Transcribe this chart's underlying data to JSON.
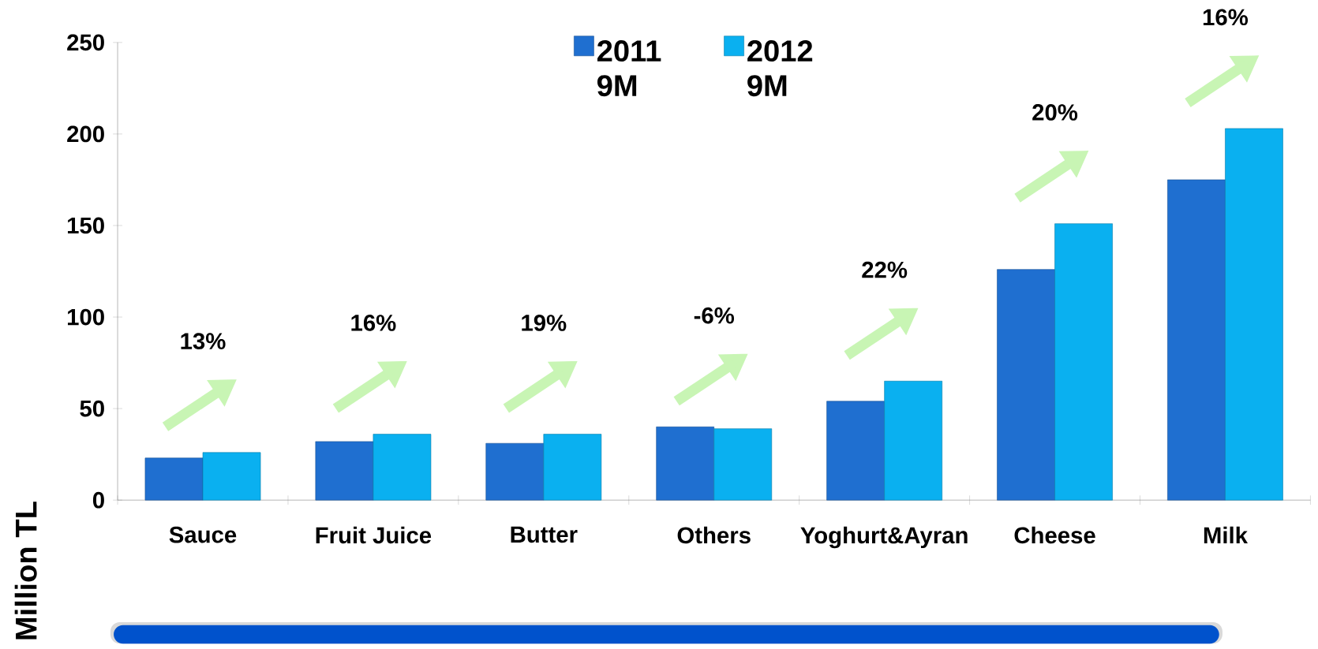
{
  "chart_data": {
    "type": "bar",
    "ylabel": "Million TL",
    "categories": [
      "Sauce",
      "Fruit Juice",
      "Butter",
      "Others",
      "Yoghurt&Ayran",
      "Cheese",
      "Milk"
    ],
    "series": [
      {
        "name": "2011 9M",
        "color": "#1f6fd0",
        "values": [
          23,
          32,
          31,
          40,
          54,
          126,
          175
        ]
      },
      {
        "name": "2012 9M",
        "color": "#0ab0f0",
        "values": [
          26,
          36,
          36,
          39,
          65,
          151,
          203
        ]
      }
    ],
    "ylim": [
      0,
      250
    ],
    "yticks": [
      0,
      50,
      100,
      150,
      200,
      250
    ],
    "annotations": [
      "13%",
      "16%",
      "19%",
      "-6%",
      "22%",
      "20%",
      "16%"
    ],
    "legend": "top",
    "grid": false
  }
}
